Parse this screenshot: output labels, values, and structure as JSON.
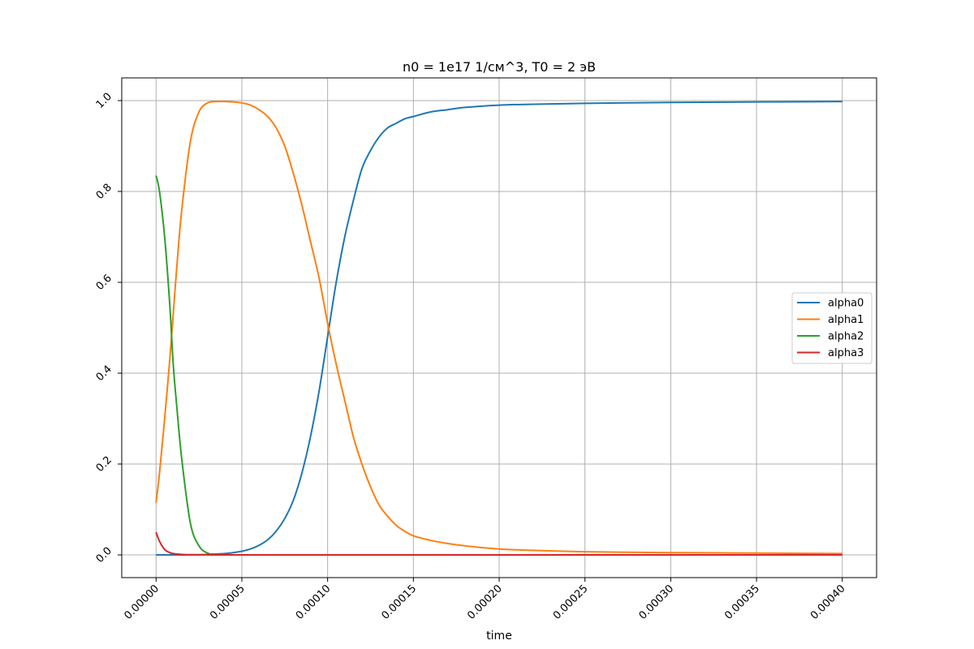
{
  "chart_data": {
    "type": "line",
    "title": "n0 = 1e17 1/см^3, T0 = 2 эВ",
    "xlabel": "time",
    "ylabel": "",
    "xlim": [
      -2e-05,
      0.00042
    ],
    "ylim": [
      -0.05,
      1.05
    ],
    "xticks": [
      0,
      5e-05,
      0.0001,
      0.00015,
      0.0002,
      0.00025,
      0.0003,
      0.00035,
      0.0004
    ],
    "xtick_labels": [
      "0.00000",
      "0.00005",
      "0.00010",
      "0.00015",
      "0.00020",
      "0.00025",
      "0.00030",
      "0.00035",
      "0.00040"
    ],
    "yticks": [
      0,
      0.2,
      0.4,
      0.6,
      0.8,
      1.0
    ],
    "ytick_labels": [
      "0.0",
      "0.2",
      "0.4",
      "0.6",
      "0.8",
      "1.0"
    ],
    "grid": true,
    "legend_position": "center-right",
    "x": [
      0,
      2e-06,
      5e-06,
      8e-06,
      1e-05,
      1.2e-05,
      1.5e-05,
      2e-05,
      2.5e-05,
      3e-05,
      3.5e-05,
      4e-05,
      4.5e-05,
      5e-05,
      5.5e-05,
      6e-05,
      6.5e-05,
      7e-05,
      7.5e-05,
      8e-05,
      8.5e-05,
      9e-05,
      9.5e-05,
      0.0001,
      0.000105,
      0.00011,
      0.000115,
      0.00012,
      0.000125,
      0.00013,
      0.000135,
      0.00014,
      0.000145,
      0.00015,
      0.00016,
      0.00017,
      0.00018,
      0.0002,
      0.00022,
      0.00025,
      0.0003,
      0.00035,
      0.0004
    ],
    "series": [
      {
        "name": "alpha0",
        "color": "#1f77b4",
        "values": [
          0,
          0,
          0,
          0,
          0,
          0,
          0,
          0.0001,
          0.0003,
          0.001,
          0.002,
          0.003,
          0.005,
          0.008,
          0.013,
          0.021,
          0.033,
          0.052,
          0.08,
          0.12,
          0.18,
          0.26,
          0.36,
          0.48,
          0.6,
          0.7,
          0.78,
          0.85,
          0.89,
          0.92,
          0.94,
          0.95,
          0.96,
          0.965,
          0.975,
          0.98,
          0.985,
          0.99,
          0.992,
          0.994,
          0.996,
          0.997,
          0.998
        ]
      },
      {
        "name": "alpha1",
        "color": "#ff7f0e",
        "values": [
          0.115,
          0.18,
          0.3,
          0.43,
          0.53,
          0.63,
          0.76,
          0.91,
          0.975,
          0.995,
          0.998,
          0.998,
          0.997,
          0.995,
          0.99,
          0.98,
          0.965,
          0.94,
          0.9,
          0.84,
          0.77,
          0.69,
          0.61,
          0.51,
          0.42,
          0.34,
          0.26,
          0.2,
          0.15,
          0.11,
          0.085,
          0.065,
          0.052,
          0.042,
          0.032,
          0.025,
          0.02,
          0.013,
          0.01,
          0.007,
          0.005,
          0.004,
          0.003
        ]
      },
      {
        "name": "alpha2",
        "color": "#2ca02c",
        "values": [
          0.835,
          0.8,
          0.7,
          0.55,
          0.42,
          0.33,
          0.21,
          0.07,
          0.02,
          0.004,
          0.001,
          0.0003,
          0.0001,
          0,
          0,
          0,
          0,
          0,
          0,
          0,
          0,
          0,
          0,
          0,
          0,
          0,
          0,
          0,
          0,
          0,
          0,
          0,
          0,
          0,
          0,
          0,
          0,
          0,
          0,
          0,
          0,
          0,
          0
        ]
      },
      {
        "name": "alpha3",
        "color": "#d62728",
        "values": [
          0.05,
          0.03,
          0.012,
          0.005,
          0.003,
          0.002,
          0.001,
          0.0005,
          0.0002,
          0.0001,
          0,
          0,
          0,
          0,
          0,
          0,
          0,
          0,
          0,
          0,
          0,
          0,
          0,
          0,
          0,
          0,
          0,
          0,
          0,
          0,
          0,
          0,
          0,
          0,
          0,
          0,
          0,
          0,
          0,
          0,
          0,
          0,
          0
        ]
      }
    ]
  }
}
